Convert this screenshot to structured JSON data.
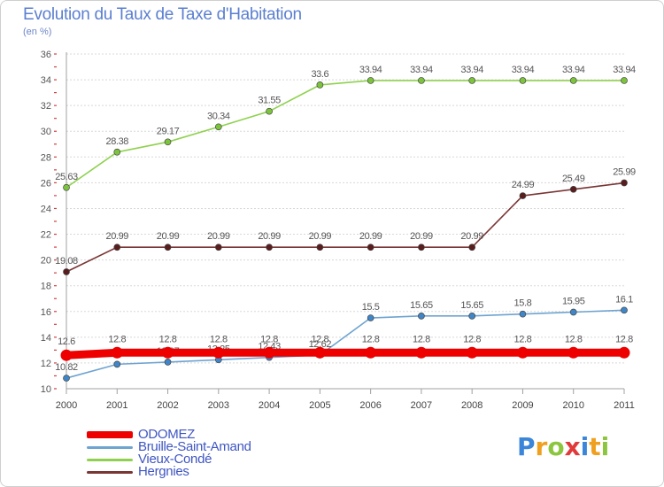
{
  "header": {
    "title": "Evolution du Taux de Taxe d'Habitation",
    "subtitle": "(en %)"
  },
  "logo": {
    "text": "Proxiti",
    "letters": [
      {
        "ch": "P",
        "color": "#3b86d8"
      },
      {
        "ch": "r",
        "color": "#f0a020"
      },
      {
        "ch": "o",
        "color": "#8cc63e"
      },
      {
        "ch": "x",
        "color": "#e03a3a"
      },
      {
        "ch": "i",
        "color": "#3b86d8"
      },
      {
        "ch": "t",
        "color": "#f0a020"
      },
      {
        "ch": "i",
        "color": "#8cc63e"
      }
    ]
  },
  "chart_data": {
    "type": "line",
    "x": [
      "2000",
      "2001",
      "2002",
      "2003",
      "2004",
      "2005",
      "2006",
      "2007",
      "2008",
      "2009",
      "2010",
      "2011"
    ],
    "ylim": [
      10,
      36
    ],
    "yticks": [
      "10",
      "12",
      "14",
      "16",
      "18",
      "20",
      "22",
      "24",
      "26",
      "28",
      "30",
      "32",
      "34",
      "36"
    ],
    "grid": true,
    "legend_position": "bottom-left",
    "series": [
      {
        "name": "Vieux-Condé",
        "color": "#8fd14f",
        "marker": "#7cc43c",
        "values": [
          25.63,
          28.38,
          29.17,
          30.34,
          31.55,
          33.6,
          33.94,
          33.94,
          33.94,
          33.94,
          33.94,
          33.94
        ],
        "labels": [
          "25.63",
          "28.38",
          "29.17",
          "30.34",
          "31.55",
          "33.6",
          "33.94",
          "33.94",
          "33.94",
          "33.94",
          "33.94",
          "33.94"
        ]
      },
      {
        "name": "Hergnies",
        "color": "#7a3535",
        "marker": "#5a1d1d",
        "values": [
          19.08,
          20.99,
          20.99,
          20.99,
          20.99,
          20.99,
          20.99,
          20.99,
          20.99,
          24.99,
          25.49,
          25.99
        ],
        "labels": [
          "19.08",
          "20.99",
          "20.99",
          "20.99",
          "20.99",
          "20.99",
          "20.99",
          "20.99",
          "20.99",
          "24.99",
          "25.49",
          "25.99"
        ]
      },
      {
        "name": "Bruille-Saint-Amand",
        "color": "#6fa3d0",
        "marker": "#3f86c8",
        "values": [
          10.82,
          11.9,
          12.07,
          12.25,
          12.43,
          12.62,
          15.5,
          15.65,
          15.65,
          15.8,
          15.95,
          16.1
        ],
        "labels": [
          "10.82",
          "11.9",
          "12.07",
          "12.25",
          "12.43",
          "12.62",
          "15.5",
          "15.65",
          "15.65",
          "15.8",
          "15.95",
          "16.1"
        ]
      },
      {
        "name": "ODOMEZ",
        "color": "#ee0000",
        "marker": "#ee0000",
        "values": [
          12.6,
          12.8,
          12.8,
          12.8,
          12.8,
          12.8,
          12.8,
          12.8,
          12.8,
          12.8,
          12.8,
          12.8
        ],
        "labels": [
          "12.6",
          "12.8",
          "12.8",
          "12.8",
          "12.8",
          "12.8",
          "12.8",
          "12.8",
          "12.8",
          "12.8",
          "12.8",
          "12.8"
        ]
      }
    ],
    "legend": [
      {
        "name": "ODOMEZ",
        "color": "#ee0000"
      },
      {
        "name": "Bruille-Saint-Amand",
        "color": "#6fa3d0"
      },
      {
        "name": "Vieux-Condé",
        "color": "#8fd14f"
      },
      {
        "name": "Hergnies",
        "color": "#7a3535"
      }
    ]
  }
}
